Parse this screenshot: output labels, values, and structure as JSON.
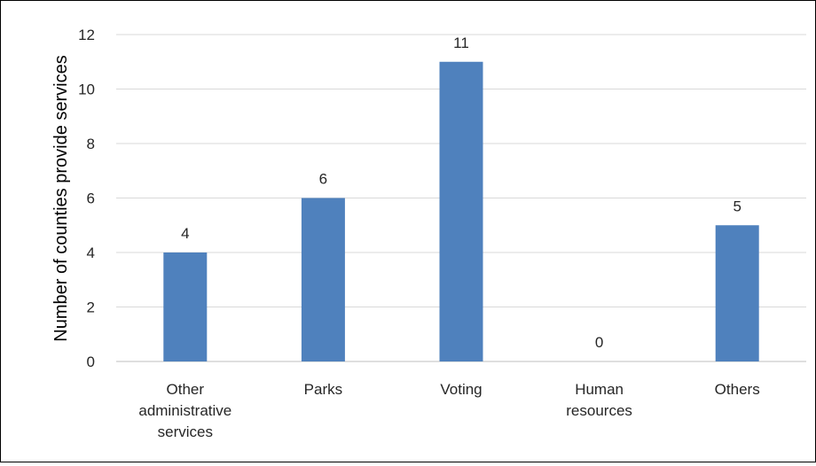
{
  "chart_data": {
    "type": "bar",
    "title": "",
    "xlabel": "",
    "ylabel": "Number of counties provide services",
    "categories": [
      [
        "Other",
        "administrative",
        "services"
      ],
      [
        "Parks"
      ],
      [
        "Voting"
      ],
      [
        "Human",
        "resources"
      ],
      [
        "Others"
      ]
    ],
    "values": [
      4,
      6,
      11,
      0,
      5
    ],
    "data_labels": [
      "4",
      "6",
      "11",
      "0",
      "5"
    ],
    "ylim": [
      0,
      12
    ],
    "y_ticks": [
      0,
      2,
      4,
      6,
      8,
      10,
      12
    ],
    "grid": true,
    "legend": "none",
    "colors": {
      "bar": "#4F81BD",
      "grid": "#D9D9D9",
      "axis": "#BFBFBF",
      "text": "#262626"
    }
  }
}
